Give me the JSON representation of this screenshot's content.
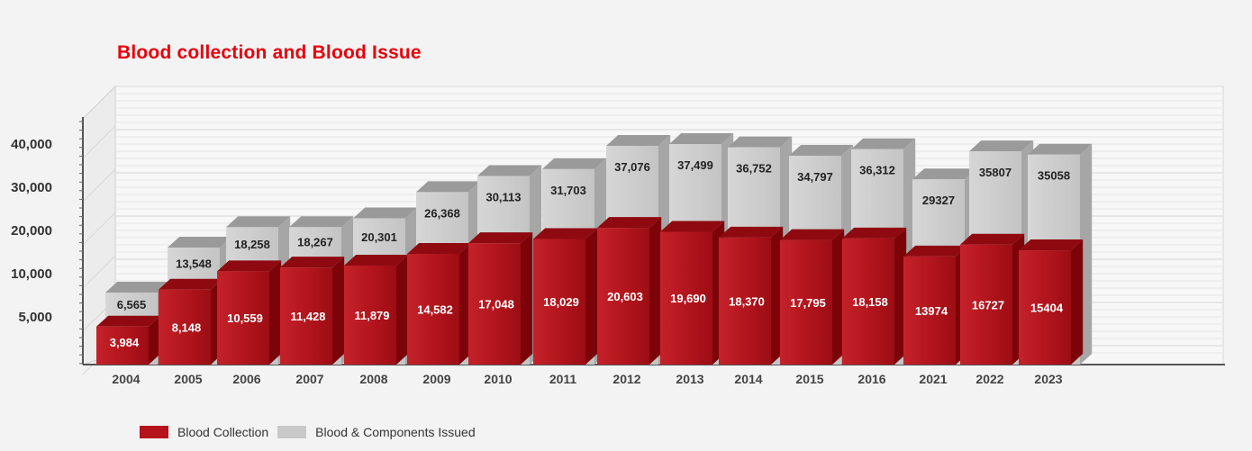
{
  "chart_data": {
    "type": "bar",
    "title": "Blood collection and Blood Issue",
    "xlabel": "",
    "ylabel": "",
    "categories": [
      "2004",
      "2005",
      "2006",
      "2007",
      "2008",
      "2009",
      "2010",
      "2011",
      "2012",
      "2013",
      "2014",
      "2015",
      "2016",
      "2021",
      "2022",
      "2023"
    ],
    "series": [
      {
        "name": "Blood Collection",
        "color": "#b5121b",
        "values": [
          3984,
          8148,
          10559,
          11428,
          11879,
          14582,
          17048,
          18029,
          20603,
          19690,
          18370,
          17795,
          18158,
          13974,
          16727,
          15404
        ],
        "labels": [
          "3,984",
          "8,148",
          "10,559",
          "11,428",
          "11,879",
          "14,582",
          "17,048",
          "18,029",
          "20,603",
          "19,690",
          "18,370",
          "17,795",
          "18,158",
          "13974",
          "16727",
          "15404"
        ]
      },
      {
        "name": "Blood & Components Issued",
        "color": "#c8c8c8",
        "values": [
          6565,
          13548,
          18258,
          18267,
          20301,
          26368,
          30113,
          31703,
          37076,
          37499,
          36752,
          34797,
          36312,
          29327,
          35807,
          35058
        ],
        "labels": [
          "6,565",
          "13,548",
          "18,258",
          "18,267",
          "20,301",
          "26,368",
          "30,113",
          "31,703",
          "37,076",
          "37,499",
          "36,752",
          "34,797",
          "36,312",
          "29327",
          "35807",
          "35058"
        ]
      }
    ],
    "yticks": [
      5000,
      10000,
      20000,
      30000,
      40000
    ],
    "ytick_labels": [
      "5,000",
      "10,000",
      "20,000",
      "30,000",
      "40,000"
    ],
    "ylim": [
      0,
      45000
    ],
    "grid": true,
    "style": "3d-stacked-depth",
    "legend_position": "bottom-left"
  },
  "legend": {
    "items": [
      {
        "label": "Blood Collection",
        "color": "#b5121b"
      },
      {
        "label": "Blood & Components Issued",
        "color": "#c8c8c8"
      }
    ]
  }
}
